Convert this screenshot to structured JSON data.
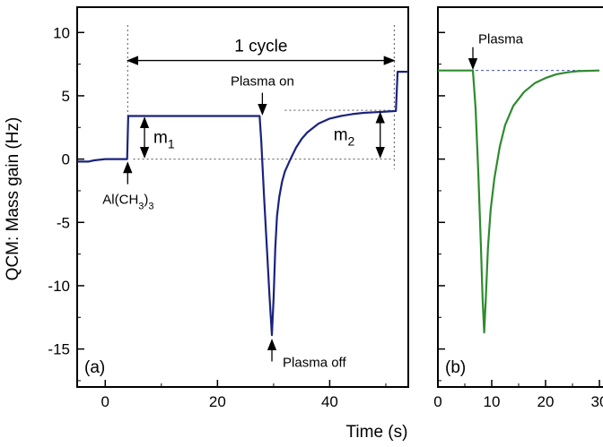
{
  "chart_data": [
    {
      "panel_label": "(a)",
      "type": "line",
      "xlabel": "Time (s)",
      "ylabel": "QCM: Mass gain (Hz)",
      "xlim": [
        -5,
        54
      ],
      "ylim": [
        -18,
        12
      ],
      "x_ticks": [
        0,
        20,
        40
      ],
      "y_ticks": [
        10,
        5,
        0,
        -5,
        -10,
        -15
      ],
      "tick_labels_x": [
        "0",
        "20",
        "40"
      ],
      "tick_labels_y": [
        "10",
        "5",
        "0",
        "-5",
        "-10",
        "-15"
      ],
      "series": [
        {
          "color": "#1a237e",
          "x": [
            -5,
            -3,
            -2,
            0,
            2,
            3.9,
            4.1,
            6,
            10,
            20,
            27.5,
            27.8,
            28.3,
            28.8,
            29.3,
            29.7,
            30.0,
            30.3,
            30.6,
            31,
            31.5,
            32,
            33,
            34,
            35,
            36,
            38,
            40,
            42,
            44,
            46,
            48,
            50,
            51.8,
            52.1,
            54
          ],
          "y": [
            -0.2,
            -0.2,
            -0.1,
            0,
            0,
            0,
            3.4,
            3.4,
            3.4,
            3.4,
            3.4,
            1.5,
            -3,
            -7,
            -11,
            -13.9,
            -11,
            -7,
            -4.5,
            -3,
            -1.8,
            -1.0,
            0,
            0.9,
            1.6,
            2.1,
            2.8,
            3.2,
            3.4,
            3.55,
            3.65,
            3.7,
            3.75,
            3.8,
            6.9,
            6.9
          ]
        }
      ],
      "annotations": [
        {
          "text": "1 cycle",
          "type": "span-arrow",
          "x_from": 4,
          "x_to": 51.5,
          "y": 9.2
        },
        {
          "text": "Plasma on",
          "type": "arrow-down",
          "x": 28,
          "y": 3.4
        },
        {
          "text": "Plasma off",
          "type": "arrow-up",
          "x": 29.7,
          "y": -14
        },
        {
          "text": "Al(CH3)3",
          "type": "arrow-up",
          "x": 4,
          "y": 0
        },
        {
          "text": "m1",
          "type": "double-arrow",
          "x": 7,
          "y_from": 0,
          "y_to": 3.4
        },
        {
          "text": "m2",
          "type": "double-arrow",
          "x": 49,
          "y_from": 0,
          "y_to": 3.8
        }
      ]
    },
    {
      "panel_label": "(b)",
      "type": "line",
      "xlabel": "",
      "ylabel": "",
      "xlim": [
        0,
        30
      ],
      "ylim": [
        -18,
        12
      ],
      "x_ticks": [
        0,
        10,
        20,
        30
      ],
      "tick_labels_x": [
        "0",
        "10",
        "20",
        "30"
      ],
      "series": [
        {
          "color": "#2e8b2e",
          "x": [
            0,
            3,
            6.5,
            7.0,
            7.5,
            8.0,
            8.3,
            8.6,
            8.9,
            9.3,
            9.8,
            10.5,
            11.5,
            12.5,
            14,
            16,
            18,
            20,
            22,
            24,
            26,
            30
          ],
          "y": [
            7,
            7,
            7,
            4,
            -1,
            -7,
            -11,
            -13.7,
            -11,
            -7,
            -4,
            -1.5,
            1,
            2.7,
            4.2,
            5.3,
            6.0,
            6.4,
            6.7,
            6.85,
            6.95,
            7.0
          ]
        }
      ],
      "annotations": [
        {
          "text": "Plasma",
          "type": "arrow-down",
          "x": 6.5,
          "y": 7
        }
      ]
    }
  ]
}
